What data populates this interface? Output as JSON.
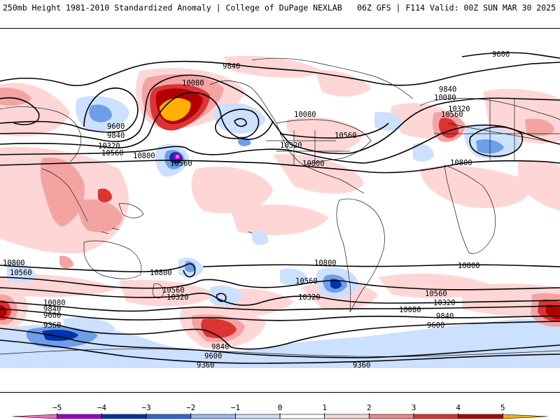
{
  "header": {
    "left_title": "250mb Height 1981-2010 Standardized Anomaly | College of DuPage NEXLAB",
    "right_title": "06Z GFS | F114 Valid: 00Z SUN MAR 30 2025"
  },
  "contours": {
    "labels": [
      "9600",
      "9840",
      "10080",
      "10560",
      "9600",
      "9840",
      "10320",
      "10560",
      "10800",
      "10560",
      "10080",
      "10320",
      "10560",
      "10800",
      "9840",
      "10080",
      "10320",
      "10560",
      "10800",
      "10800",
      "10560",
      "10800",
      "10560",
      "10320",
      "10320",
      "10560",
      "10800",
      "10800",
      "10560",
      "10320",
      "10080",
      "9840",
      "9600",
      "10080",
      "9840",
      "9600",
      "9360",
      "9840",
      "9600",
      "9360",
      "9360"
    ]
  },
  "legend": {
    "ticks": [
      "−5",
      "−4",
      "−3",
      "−2",
      "−1",
      "0",
      "1",
      "2",
      "3",
      "4",
      "5"
    ],
    "colors": [
      "#ff66cc",
      "#9900cc",
      "#0033aa",
      "#3366dd",
      "#99bbf2",
      "#cce0ff",
      "#ffffff",
      "#ffd6d6",
      "#f28888",
      "#dd3333",
      "#b20000",
      "#ffb000"
    ]
  }
}
